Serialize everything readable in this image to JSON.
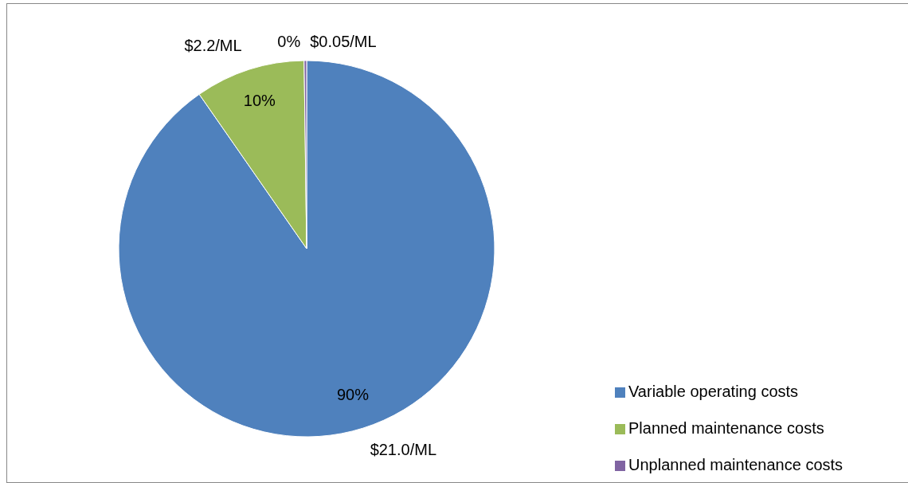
{
  "chart_data": {
    "type": "pie",
    "categories": [
      "Variable operating costs",
      "Planned maintenance costs",
      "Unplanned maintenance costs"
    ],
    "values": [
      21.0,
      2.2,
      0.05
    ],
    "colors": [
      "#4f81bd",
      "#9bbb59",
      "#8064a2"
    ],
    "value_labels": [
      "$21.0/ML",
      "$2.2/ML",
      "$0.05/ML"
    ],
    "annotations": [
      "90%",
      "10%",
      "0%"
    ],
    "legend": "bottom right"
  }
}
